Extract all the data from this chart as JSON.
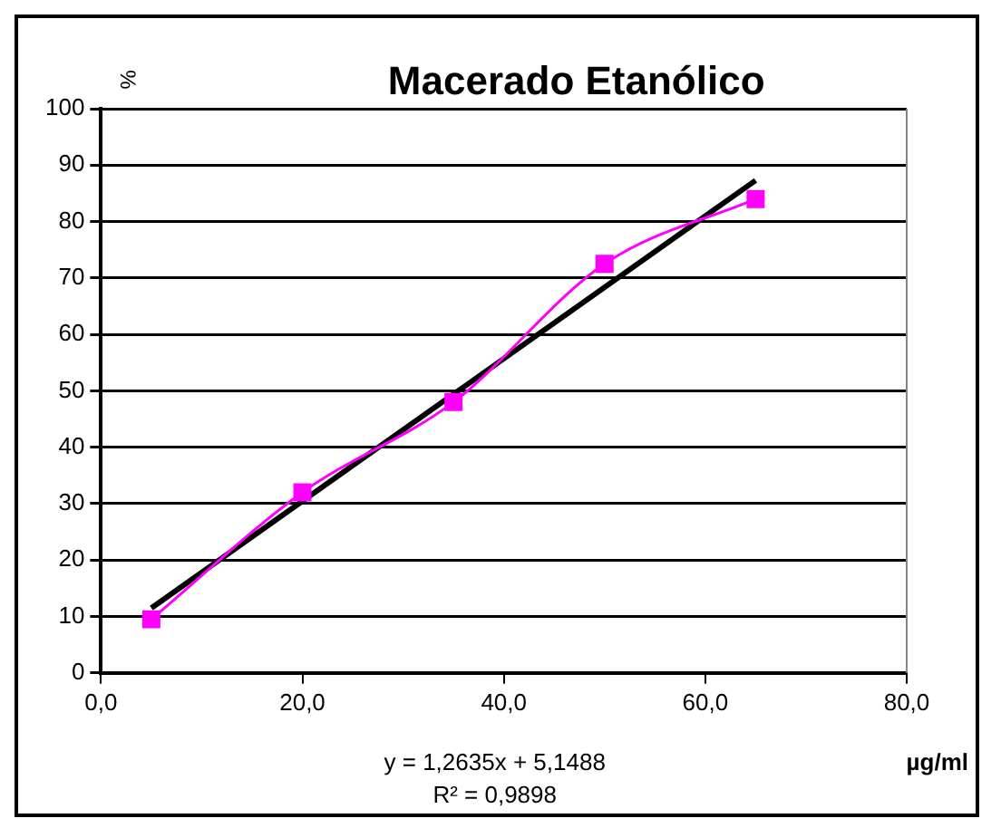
{
  "chart_data": {
    "type": "line",
    "title": "Macerado Etanólico",
    "xlabel": "µg/ml",
    "ylabel": "%",
    "x": [
      5,
      20,
      35,
      50,
      65
    ],
    "series": [
      {
        "color": "#ff00ff",
        "values": [
          9.5,
          32,
          48,
          72.5,
          84
        ],
        "marker": "square"
      },
      {
        "color": "#000000",
        "x": [
          5,
          65
        ],
        "values": [
          11.5,
          87.3
        ],
        "marker": "none"
      }
    ],
    "xlim": [
      0,
      80
    ],
    "xticks": [
      {
        "value": 0,
        "label": "0,0"
      },
      {
        "value": 20,
        "label": "20,0"
      },
      {
        "value": 40,
        "label": "40,0"
      },
      {
        "value": 60,
        "label": "60,0"
      },
      {
        "value": 80,
        "label": "80,0"
      }
    ],
    "ylim": [
      0,
      100
    ],
    "yticks": [
      0,
      10,
      20,
      30,
      40,
      50,
      60,
      70,
      80,
      90,
      100
    ],
    "grid": "y",
    "legend": false,
    "annotations": [
      "y = 1,2635x + 5,1488",
      "R² = 0,9898"
    ]
  }
}
